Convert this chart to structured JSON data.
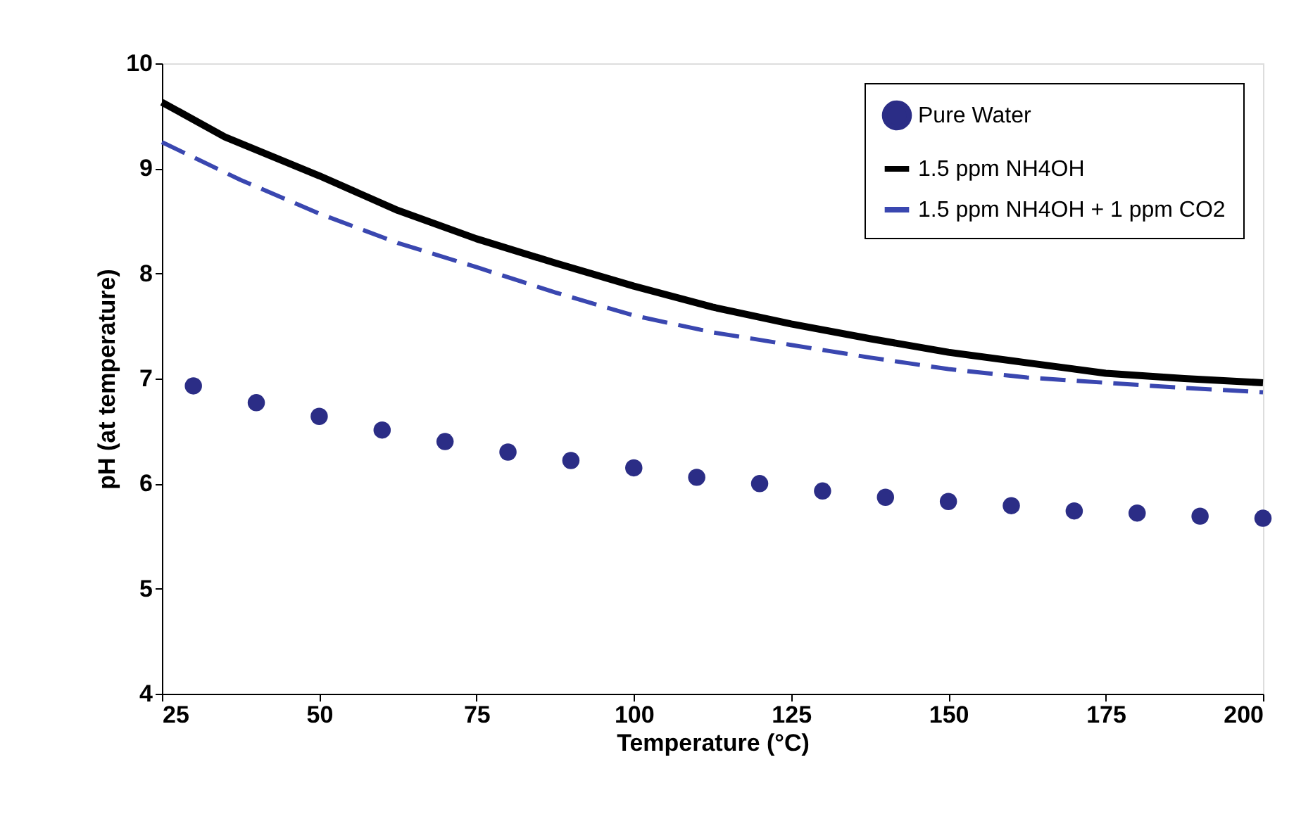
{
  "chart_data": {
    "type": "line",
    "xlabel": "Temperature (°C)",
    "ylabel": "pH (at temperature)",
    "xlim": [
      25,
      200
    ],
    "xticks": [
      25,
      50,
      75,
      100,
      125,
      150,
      175,
      200
    ],
    "ylim": [
      4,
      10
    ],
    "yticks": [
      4,
      5,
      6,
      7,
      8,
      9,
      10
    ],
    "grid": false,
    "legend": "top right",
    "series": [
      {
        "name": "Pure Water",
        "type": "scatter",
        "marker": "circle",
        "color": "#2b2d86",
        "x": [
          30,
          40,
          50,
          60,
          70,
          80,
          90,
          100,
          110,
          120,
          130,
          140,
          150,
          160,
          170,
          180,
          190,
          200
        ],
        "values": [
          6.93,
          6.77,
          6.64,
          6.51,
          6.4,
          6.3,
          6.22,
          6.15,
          6.06,
          6.0,
          5.93,
          5.87,
          5.83,
          5.79,
          5.74,
          5.72,
          5.69,
          5.67
        ]
      },
      {
        "name": "1.5 ppm NH4OH",
        "line_style": "solid",
        "color": "#000000",
        "x": [
          25,
          35,
          50,
          62.5,
          75,
          87.5,
          100,
          112.5,
          125,
          137.5,
          150,
          162.5,
          175,
          187.5,
          200
        ],
        "values": [
          9.63,
          9.3,
          8.93,
          8.6,
          8.33,
          8.1,
          7.88,
          7.68,
          7.52,
          7.38,
          7.25,
          7.15,
          7.05,
          7.0,
          6.96
        ]
      },
      {
        "name": "1.5 ppm NH4OH + 1 ppm CO2",
        "line_style": "dashed",
        "color": "#3a47b0",
        "x": [
          25,
          37.5,
          50,
          62.5,
          75,
          87.5,
          100,
          112.5,
          125,
          137.5,
          150,
          162.5,
          175,
          187.5,
          200
        ],
        "values": [
          9.25,
          8.89,
          8.57,
          8.29,
          8.06,
          7.82,
          7.6,
          7.44,
          7.32,
          7.2,
          7.09,
          7.01,
          6.96,
          6.91,
          6.87
        ]
      }
    ]
  }
}
